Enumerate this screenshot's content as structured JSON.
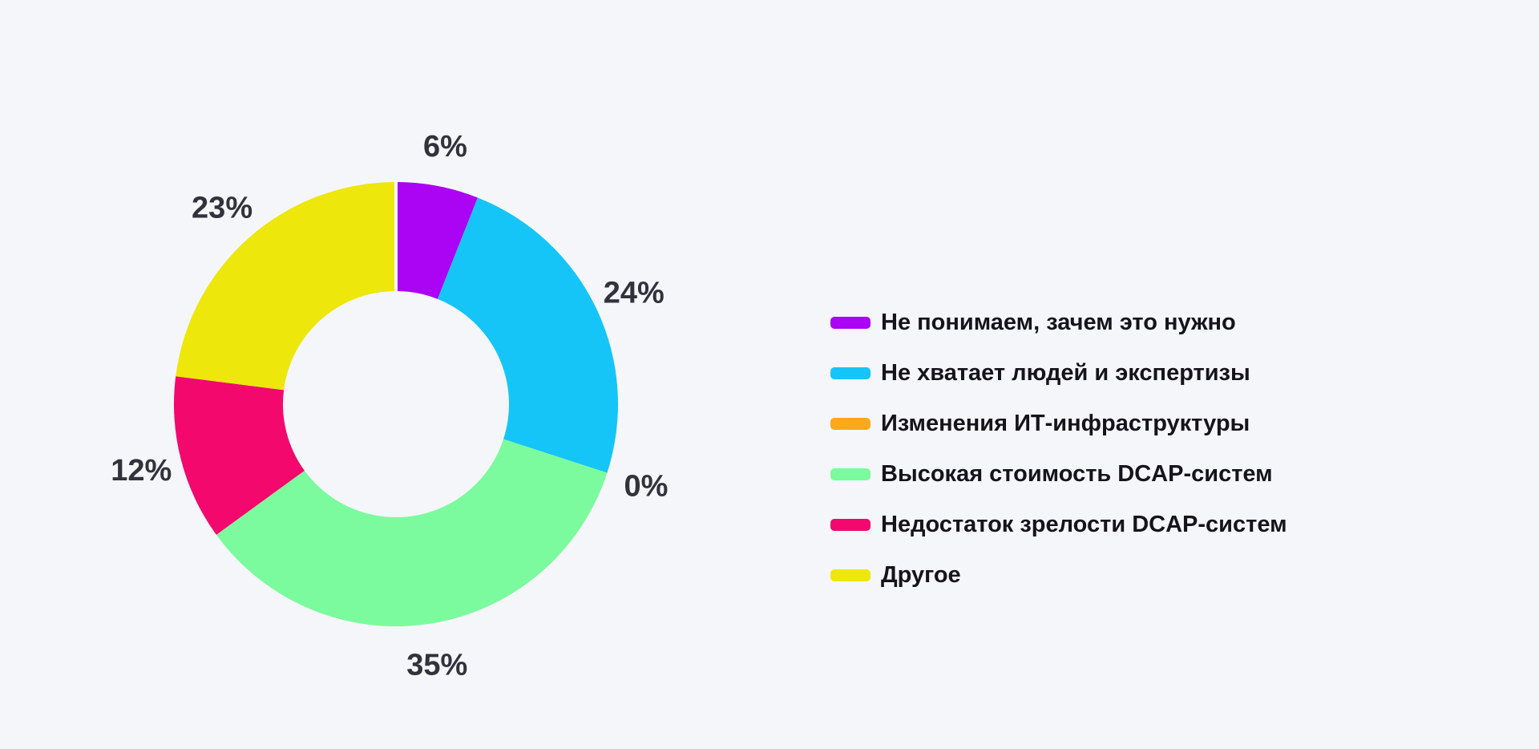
{
  "colors": {
    "background": "#F5F6FA",
    "percent_label_text": "#32323C",
    "legend_text": "#14141A"
  },
  "chart_data": {
    "type": "pie",
    "style": "donut",
    "title": "",
    "unit": "%",
    "total": 100,
    "direction": "clockwise",
    "start_angle_deg": 0,
    "inner_radius_ratio": 0.51,
    "legend_position": "right",
    "grid": false,
    "slices": [
      {
        "label": "Не понимаем, зачем это нужно",
        "value": 6,
        "percent_label": "6%",
        "color": "#AB04F5"
      },
      {
        "label": "Не хватает людей и экспертизы",
        "value": 24,
        "percent_label": "24%",
        "color": "#15C5F8"
      },
      {
        "label": "Изменения ИТ-инфраструктуры",
        "value": 0,
        "percent_label": "0%",
        "color": "#FAA81C"
      },
      {
        "label": "Высокая стоимость DCAP-систем",
        "value": 35,
        "percent_label": "35%",
        "color": "#7BFB9D"
      },
      {
        "label": "Недостаток зрелости DCAP-систем",
        "value": 12,
        "percent_label": "12%",
        "color": "#F3086E"
      },
      {
        "label": "Другое",
        "value": 23,
        "percent_label": "23%",
        "color": "#EDE70C"
      }
    ]
  }
}
